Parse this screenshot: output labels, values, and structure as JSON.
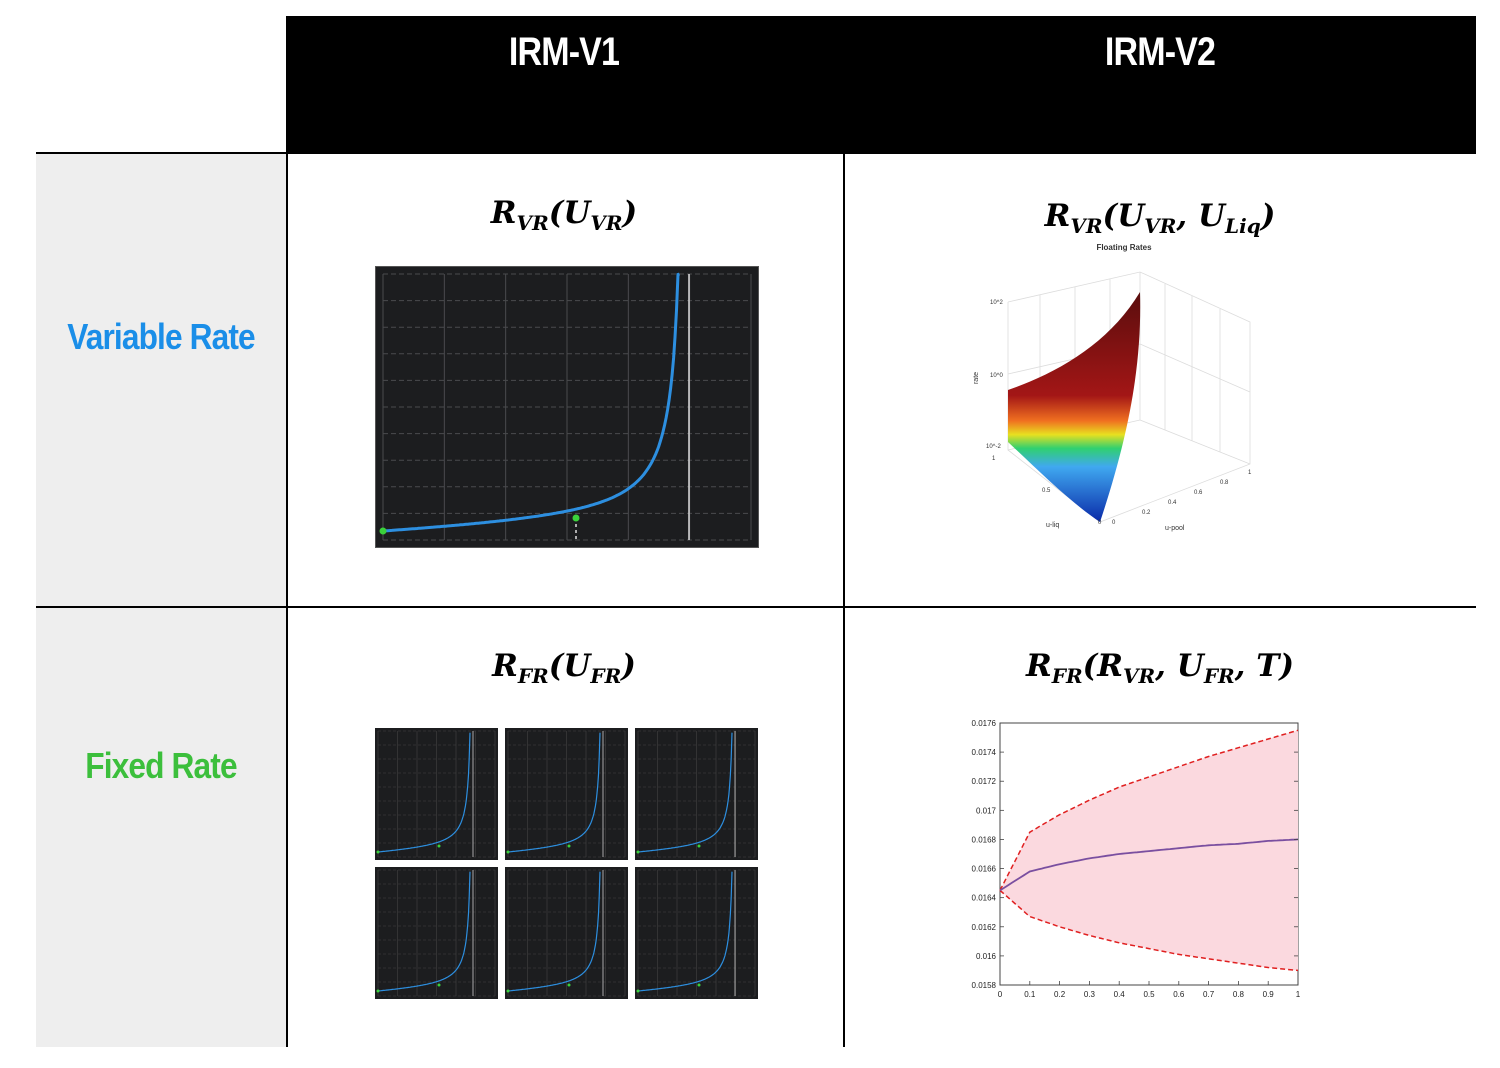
{
  "columns": [
    "IRM-V1",
    "IRM-V2"
  ],
  "rows": [
    {
      "label": "Variable Rate",
      "color": "#1a8ee8"
    },
    {
      "label": "Fixed Rate",
      "color": "#3cbf3c"
    }
  ],
  "formulas": {
    "vr_v1": {
      "R": "R",
      "Rsub": "VR",
      "args": [
        {
          "U": "U",
          "sub": "VR"
        }
      ]
    },
    "vr_v2": {
      "R": "R",
      "Rsub": "VR",
      "args": [
        {
          "U": "U",
          "sub": "VR"
        },
        {
          "U": "U",
          "sub": "Liq"
        }
      ]
    },
    "fr_v1": {
      "R": "R",
      "Rsub": "FR",
      "args": [
        {
          "U": "U",
          "sub": "FR"
        }
      ]
    },
    "fr_v2": {
      "R": "R",
      "Rsub": "FR",
      "args": [
        {
          "U": "R",
          "sub": "VR"
        },
        {
          "U": "U",
          "sub": "FR"
        },
        {
          "U": "T",
          "sub": ""
        }
      ]
    }
  },
  "surface_plot": {
    "title": "Floating Rates",
    "zlabel": "rate",
    "xlabel": "u-pool",
    "ylabel": "u-liq",
    "z_ticks": [
      "10^2",
      "10^0",
      "10^-2"
    ],
    "x_ticks": [
      "0",
      "0.2",
      "0.4",
      "0.6",
      "0.8",
      "1"
    ],
    "y_ticks": [
      "0",
      "0.5",
      "1"
    ]
  },
  "chart_data": {
    "type": "line",
    "x": [
      0,
      0.1,
      0.2,
      0.3,
      0.4,
      0.5,
      0.6,
      0.7,
      0.8,
      0.9,
      1
    ],
    "series": [
      {
        "values": [
          0.01645,
          0.01658,
          0.01663,
          0.01667,
          0.0167,
          0.01672,
          0.01674,
          0.01676,
          0.01677,
          0.01679,
          0.0168
        ],
        "color": "#7a4fa0",
        "style": "solid"
      },
      {
        "values": [
          0.01645,
          0.01685,
          0.01697,
          0.01707,
          0.01716,
          0.01723,
          0.0173,
          0.01737,
          0.01743,
          0.01749,
          0.01755
        ],
        "color": "#e02020",
        "style": "dashed"
      },
      {
        "values": [
          0.01645,
          0.01627,
          0.0162,
          0.01614,
          0.01609,
          0.01605,
          0.01601,
          0.01598,
          0.01595,
          0.01592,
          0.0159
        ],
        "color": "#e02020",
        "style": "dashed"
      }
    ],
    "band_color": "#fbd9df",
    "xlim": [
      0,
      1
    ],
    "ylim": [
      0.0158,
      0.0176
    ],
    "x_ticks": [
      "0",
      "0.1",
      "0.2",
      "0.3",
      "0.4",
      "0.5",
      "0.6",
      "0.7",
      "0.8",
      "0.9",
      "1"
    ],
    "y_ticks": [
      "0.0158",
      "0.016",
      "0.0162",
      "0.0164",
      "0.0166",
      "0.0168",
      "0.017",
      "0.0172",
      "0.0174",
      "0.0176"
    ],
    "title": "",
    "xlabel": "",
    "ylabel": ""
  }
}
